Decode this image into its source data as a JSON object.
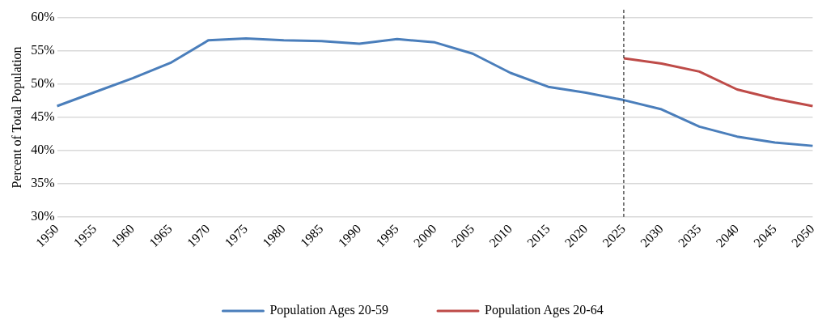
{
  "chart_data": {
    "type": "line",
    "ylabel": "Percent of Total Population",
    "categories": [
      "1950",
      "1955",
      "1960",
      "1965",
      "1970",
      "1975",
      "1980",
      "1985",
      "1990",
      "1995",
      "2000",
      "2005",
      "2010",
      "2015",
      "2020",
      "2025",
      "2030",
      "2035",
      "2040",
      "2045",
      "2050"
    ],
    "series": [
      {
        "name": "Population Ages 20-59",
        "color": "#4a7ebb",
        "values": [
          46.7,
          48.8,
          50.9,
          53.2,
          56.6,
          56.9,
          56.6,
          56.5,
          56.1,
          56.8,
          56.3,
          54.6,
          51.7,
          49.6,
          48.7,
          47.6,
          46.2,
          43.6,
          42.1,
          41.2,
          40.7
        ]
      },
      {
        "name": "Population Ages 20-64",
        "color": "#be4b48",
        "values": [
          null,
          null,
          null,
          null,
          null,
          null,
          null,
          null,
          null,
          null,
          null,
          null,
          null,
          null,
          null,
          53.9,
          53.1,
          51.9,
          49.2,
          47.8,
          46.7
        ]
      }
    ],
    "ylim": [
      30,
      60
    ],
    "yticks": [
      {
        "value": 30,
        "label": "30%"
      },
      {
        "value": 35,
        "label": "35%"
      },
      {
        "value": 40,
        "label": "40%"
      },
      {
        "value": 45,
        "label": "45%"
      },
      {
        "value": 50,
        "label": "50%"
      },
      {
        "value": 55,
        "label": "55%"
      },
      {
        "value": 60,
        "label": "60%"
      }
    ],
    "ref_lines": [
      {
        "axis": "x",
        "value": "2025",
        "color": "#000000",
        "line_style": "dashed"
      }
    ],
    "grid": "y",
    "legend": "bottom",
    "marker": "none",
    "line_style": "solid"
  }
}
